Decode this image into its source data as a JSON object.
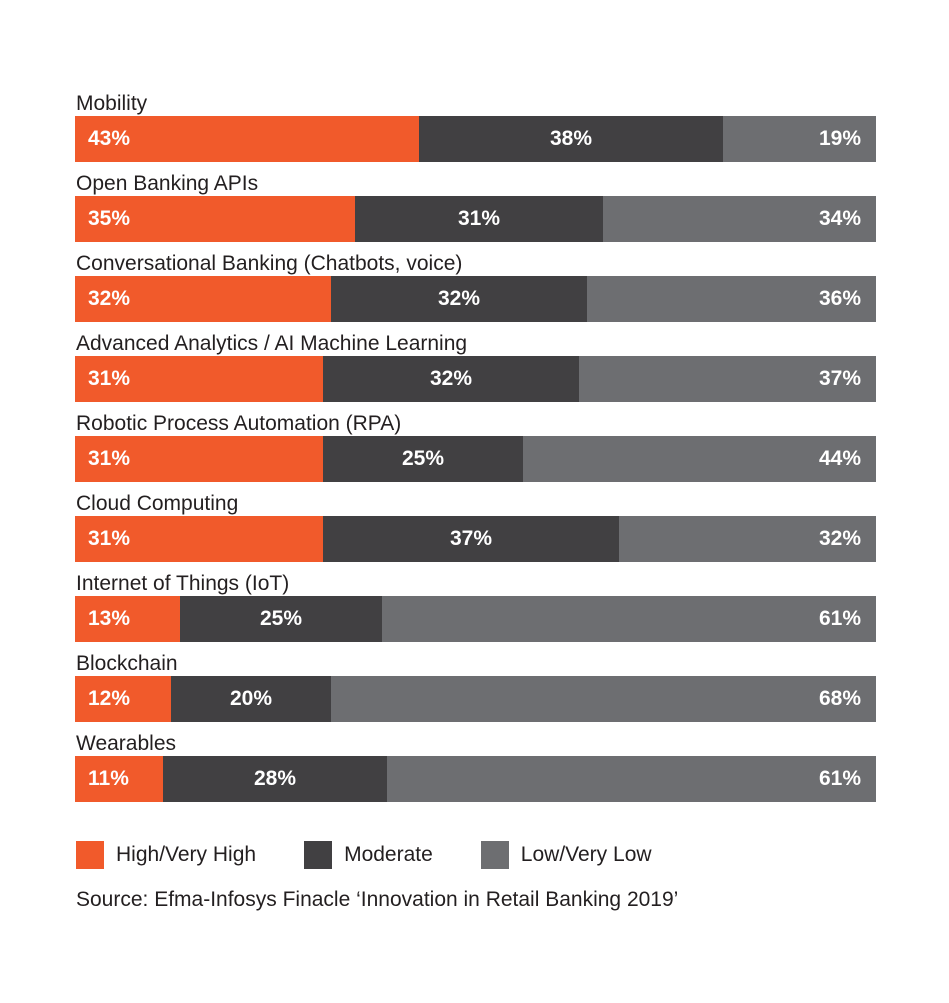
{
  "chart_data": {
    "type": "bar",
    "orientation": "horizontal",
    "stacked": true,
    "normalized": true,
    "categories": [
      "Mobility",
      "Open Banking APIs",
      "Conversational Banking (Chatbots, voice)",
      "Advanced Analytics / AI Machine Learning",
      "Robotic Process Automation (RPA)",
      "Cloud Computing",
      "Internet of Things (IoT)",
      "Blockchain",
      "Wearables"
    ],
    "series": [
      {
        "name": "High/Very High",
        "color": "#f15a2b",
        "values": [
          43,
          35,
          32,
          31,
          31,
          31,
          13,
          12,
          11
        ],
        "labels": [
          "43%",
          "35%",
          "32%",
          "31%",
          "31%",
          "31%",
          "13%",
          "12%",
          "11%"
        ]
      },
      {
        "name": "Moderate",
        "color": "#414042",
        "values": [
          38,
          31,
          32,
          32,
          25,
          37,
          25,
          20,
          28
        ],
        "labels": [
          "38%",
          "31%",
          "32%",
          "32%",
          "25%",
          "37%",
          "25%",
          "20%",
          "28%"
        ]
      },
      {
        "name": "Low/Very Low",
        "color": "#6d6e71",
        "values": [
          19,
          34,
          36,
          37,
          44,
          32,
          61,
          68,
          61
        ],
        "labels": [
          "19%",
          "34%",
          "36%",
          "37%",
          "44%",
          "32%",
          "61%",
          "68%",
          "61%"
        ]
      }
    ],
    "grid": false,
    "legend_position": "bottom-left"
  },
  "source": "Source: Efma-Infosys Finacle ‘Innovation in Retail Banking 2019’"
}
